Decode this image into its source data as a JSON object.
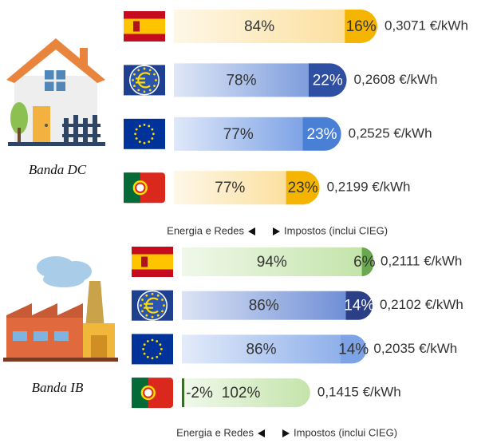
{
  "chart_data": [
    {
      "type": "stacked-share-bar",
      "title": "Banda DC",
      "series": [
        {
          "name": "Energia e Redes",
          "values": [
            84,
            78,
            77,
            77
          ],
          "value_labels": [
            "84%",
            "78%",
            "77%",
            "77%"
          ],
          "colors": [
            "#fbe0a0",
            "#7f9edd",
            "#7ea3e6",
            "#fbe0a0"
          ]
        },
        {
          "name": "Impostos (inclui CIEG)",
          "values": [
            16,
            22,
            23,
            23
          ],
          "value_labels": [
            "16%",
            "22%",
            "23%",
            "23%"
          ],
          "colors": [
            "#f4b400",
            "#2f4fa3",
            "#4a7fd6",
            "#f4b400"
          ]
        }
      ],
      "prices": {
        "values": [
          0.3071,
          0.2608,
          0.2525,
          0.2199
        ],
        "value_labels": [
          "0,3071 €/kWh",
          "0,2608 €/kWh",
          "0,2525 €/kWh",
          "0,2199 €/kWh"
        ]
      }
    },
    {
      "type": "stacked-share-bar",
      "title": "Banda IB",
      "series": [
        {
          "name": "Energia e Redes",
          "values": [
            94,
            86,
            86,
            102
          ],
          "value_labels": [
            "94%",
            "86%",
            "86%",
            "102%"
          ],
          "colors": [
            "#c4e4ab",
            "#6f8fd6",
            "#8fb0ea",
            "#c4e4ab"
          ]
        },
        {
          "name": "Impostos (inclui CIEG)",
          "values": [
            6,
            14,
            14,
            -2
          ],
          "value_labels": [
            "6%",
            "14%",
            "14%",
            "-2%"
          ],
          "colors": [
            "#6aa84f",
            "#2b3f86",
            "#7da3e6",
            "#3d6b2a"
          ]
        }
      ],
      "prices": {
        "values": [
          0.2111,
          0.2102,
          0.2035,
          0.1415
        ],
        "value_labels": [
          "0,2111 €/kWh",
          "0,2102 €/kWh",
          "0,2035 €/kWh",
          "0,1415 €/kWh"
        ]
      }
    }
  ]
}
